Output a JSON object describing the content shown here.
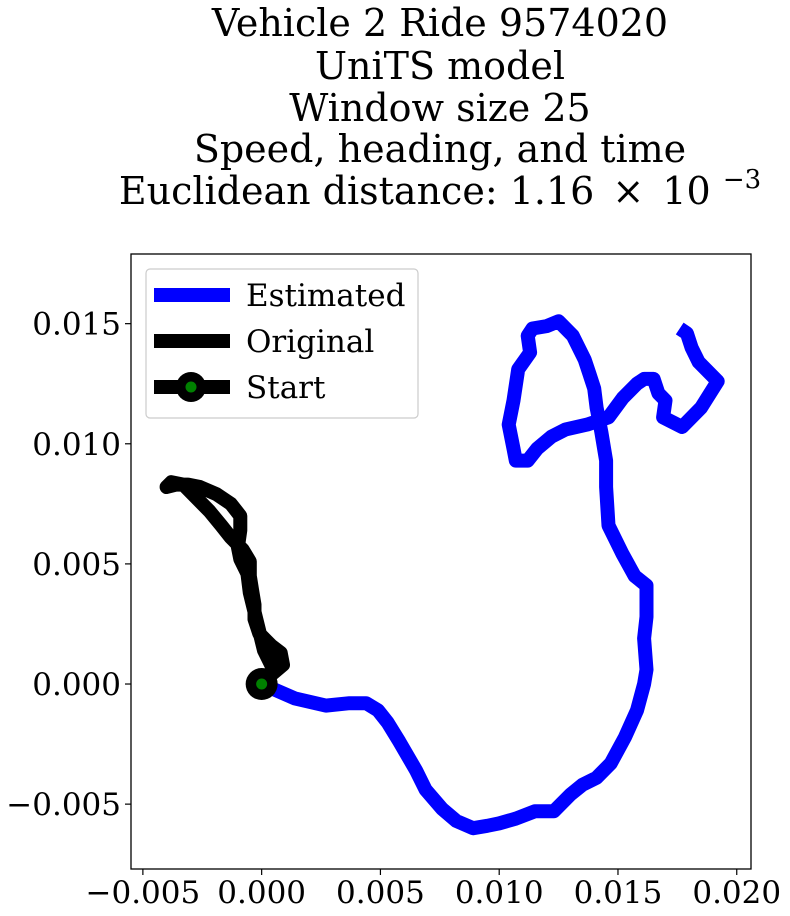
{
  "chart_data": {
    "type": "line",
    "title_lines": [
      "Vehicle 2 Ride 9574020",
      "UniTS model",
      "Window size 25",
      "Speed, heading, and time"
    ],
    "title_distance": {
      "prefix": "Euclidean distance: 1.16",
      "times": "×",
      "base": "10",
      "exponent": "−3"
    },
    "xlabel": "",
    "ylabel": "",
    "xlim": [
      -0.0055,
      0.0206
    ],
    "ylim": [
      -0.0077,
      0.0179
    ],
    "xticks": [
      -0.005,
      0.0,
      0.005,
      0.01,
      0.015,
      0.02
    ],
    "xtick_labels": [
      "−0.005",
      "0.000",
      "0.005",
      "0.010",
      "0.015",
      "0.020"
    ],
    "yticks": [
      -0.005,
      0.0,
      0.005,
      0.01,
      0.015
    ],
    "ytick_labels": [
      "−0.005",
      "0.000",
      "0.005",
      "0.010",
      "0.015"
    ],
    "grid": false,
    "legend_position": "upper-left",
    "series": [
      {
        "name": "Estimated",
        "color": "#0000ff",
        "x": [
          0.0,
          0.0014,
          0.0027,
          0.0037,
          0.0044,
          0.0049,
          0.0053,
          0.0058,
          0.0065,
          0.0069,
          0.0076,
          0.0082,
          0.0089,
          0.0095,
          0.01,
          0.0107,
          0.0115,
          0.0123,
          0.013,
          0.0135,
          0.0141,
          0.0147,
          0.0153,
          0.0158,
          0.0161,
          0.0162,
          0.0161,
          0.0162,
          0.0162,
          0.0157,
          0.0152,
          0.0146,
          0.0145,
          0.0145,
          0.0143,
          0.0141,
          0.014,
          0.0138,
          0.0136,
          0.0131,
          0.0125,
          0.012,
          0.0114,
          0.0112,
          0.0113,
          0.0108,
          0.0106,
          0.0104,
          0.0106,
          0.0107,
          0.0112,
          0.0116,
          0.0122,
          0.0128,
          0.0137,
          0.0146,
          0.0152,
          0.0158,
          0.0161,
          0.0165,
          0.0167,
          0.017,
          0.0169,
          0.0177,
          0.0185,
          0.0192,
          0.0184,
          0.0181,
          0.0179,
          0.0176
        ],
        "y": [
          0.0,
          -0.0006,
          -0.0009,
          -0.0008,
          -0.0008,
          -0.0011,
          -0.0016,
          -0.0024,
          -0.0036,
          -0.0044,
          -0.0052,
          -0.0057,
          -0.006,
          -0.0059,
          -0.0058,
          -0.0056,
          -0.0053,
          -0.0053,
          -0.0046,
          -0.0042,
          -0.0039,
          -0.0033,
          -0.0022,
          -0.0011,
          0.0,
          0.0006,
          0.0019,
          0.0028,
          0.0041,
          0.0045,
          0.0054,
          0.0066,
          0.0082,
          0.0093,
          0.0105,
          0.0115,
          0.0123,
          0.0129,
          0.0135,
          0.0145,
          0.0151,
          0.0149,
          0.0148,
          0.0145,
          0.0138,
          0.0131,
          0.0118,
          0.0108,
          0.0098,
          0.0093,
          0.0093,
          0.0098,
          0.0103,
          0.0106,
          0.0108,
          0.0111,
          0.0119,
          0.0125,
          0.0127,
          0.0127,
          0.0121,
          0.0118,
          0.0111,
          0.0107,
          0.0115,
          0.0126,
          0.0134,
          0.014,
          0.0146,
          0.0148
        ]
      },
      {
        "name": "Original",
        "color": "#000000",
        "x": [
          0.0,
          0.0003,
          0.0009,
          0.0008,
          0.0004,
          -0.0001,
          -0.0003,
          -0.0003,
          -0.0004,
          -0.0005,
          -0.0005,
          -0.0008,
          -0.0013,
          -0.0017,
          -0.0022,
          -0.0028,
          -0.0033,
          -0.0038,
          -0.004,
          -0.0036,
          -0.0031,
          -0.0026,
          -0.0019,
          -0.0013,
          -0.0009,
          -0.0009,
          -0.001,
          -0.0009,
          -0.0006,
          -0.0005,
          -0.0002,
          0.0001,
          0.0005
        ],
        "y": [
          0.0,
          0.0003,
          0.0008,
          0.0013,
          0.0016,
          0.0021,
          0.0027,
          0.0033,
          0.0039,
          0.0045,
          0.0051,
          0.0056,
          0.0061,
          0.0066,
          0.0072,
          0.0078,
          0.0083,
          0.0084,
          0.0082,
          0.0083,
          0.0083,
          0.0082,
          0.0079,
          0.0075,
          0.007,
          0.0064,
          0.0057,
          0.0052,
          0.0046,
          0.0038,
          0.0026,
          0.0014,
          0.0006
        ]
      }
    ],
    "start": {
      "name": "Start",
      "x": 0.0,
      "y": 0.0,
      "marker_color": "#008000",
      "marker_edge": "#000000"
    }
  }
}
